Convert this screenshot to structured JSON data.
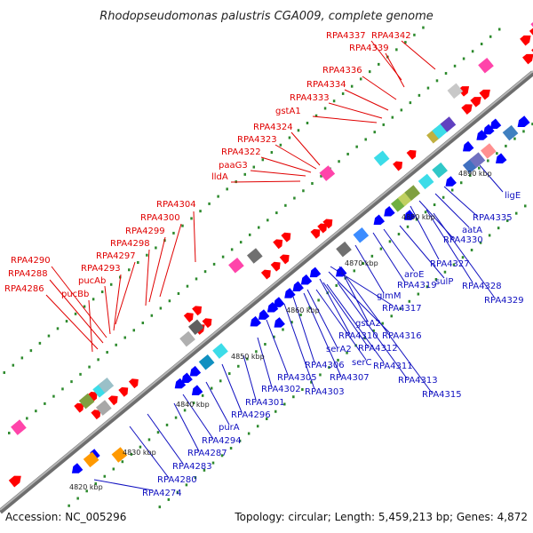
{
  "title": "Rhodopseudomonas palustris CGA009, complete genome",
  "footer": {
    "accession": "Accession: NC_005296",
    "topology": "Topology: circular; Length: 5,459,213 bp; Genes: 4,872"
  },
  "colors": {
    "forward_label": "#e00000",
    "reverse_label": "#1010c0",
    "backbone": "#8a8a8a",
    "tick": "#2d8a2d"
  },
  "kbp_markers": [
    "4820 kbp",
    "4830 kbp",
    "4840 kbp",
    "4850 kbp",
    "4860 kbp",
    "4870 kbp",
    "4880 kbp",
    "4890 kbp"
  ],
  "forward_labels": [
    "RPA4337",
    "RPA4342",
    "RPA4339",
    "RPA4336",
    "RPA4334",
    "RPA4333",
    "gstA1",
    "RPA4324",
    "RPA4323",
    "RPA4322",
    "paaG3",
    "lldA",
    "RPA4304",
    "RPA4300",
    "RPA4299",
    "RPA4298",
    "RPA4297",
    "RPA4293",
    "pucAb",
    "RPA4290",
    "RPA4288",
    "pucBb",
    "RPA4286"
  ],
  "reverse_labels": [
    "ligE",
    "RPA4335",
    "aatA",
    "RPA4330",
    "RPA4327",
    "RPA4328",
    "RPA4329",
    "aroE",
    "sulP",
    "RPA4319",
    "glmM",
    "RPA4317",
    "gstA2",
    "RPA4316",
    "RPA4310",
    "RPA4312",
    "serA2",
    "serC",
    "RPA4311",
    "RPA4313",
    "RPA4315",
    "RPA4306",
    "RPA4307",
    "RPA4305",
    "RPA4303",
    "RPA4302",
    "RPA4301",
    "RPA4296",
    "purA",
    "RPA4294",
    "RPA4287",
    "RPA4283",
    "RPA4280",
    "RPA4274"
  ]
}
